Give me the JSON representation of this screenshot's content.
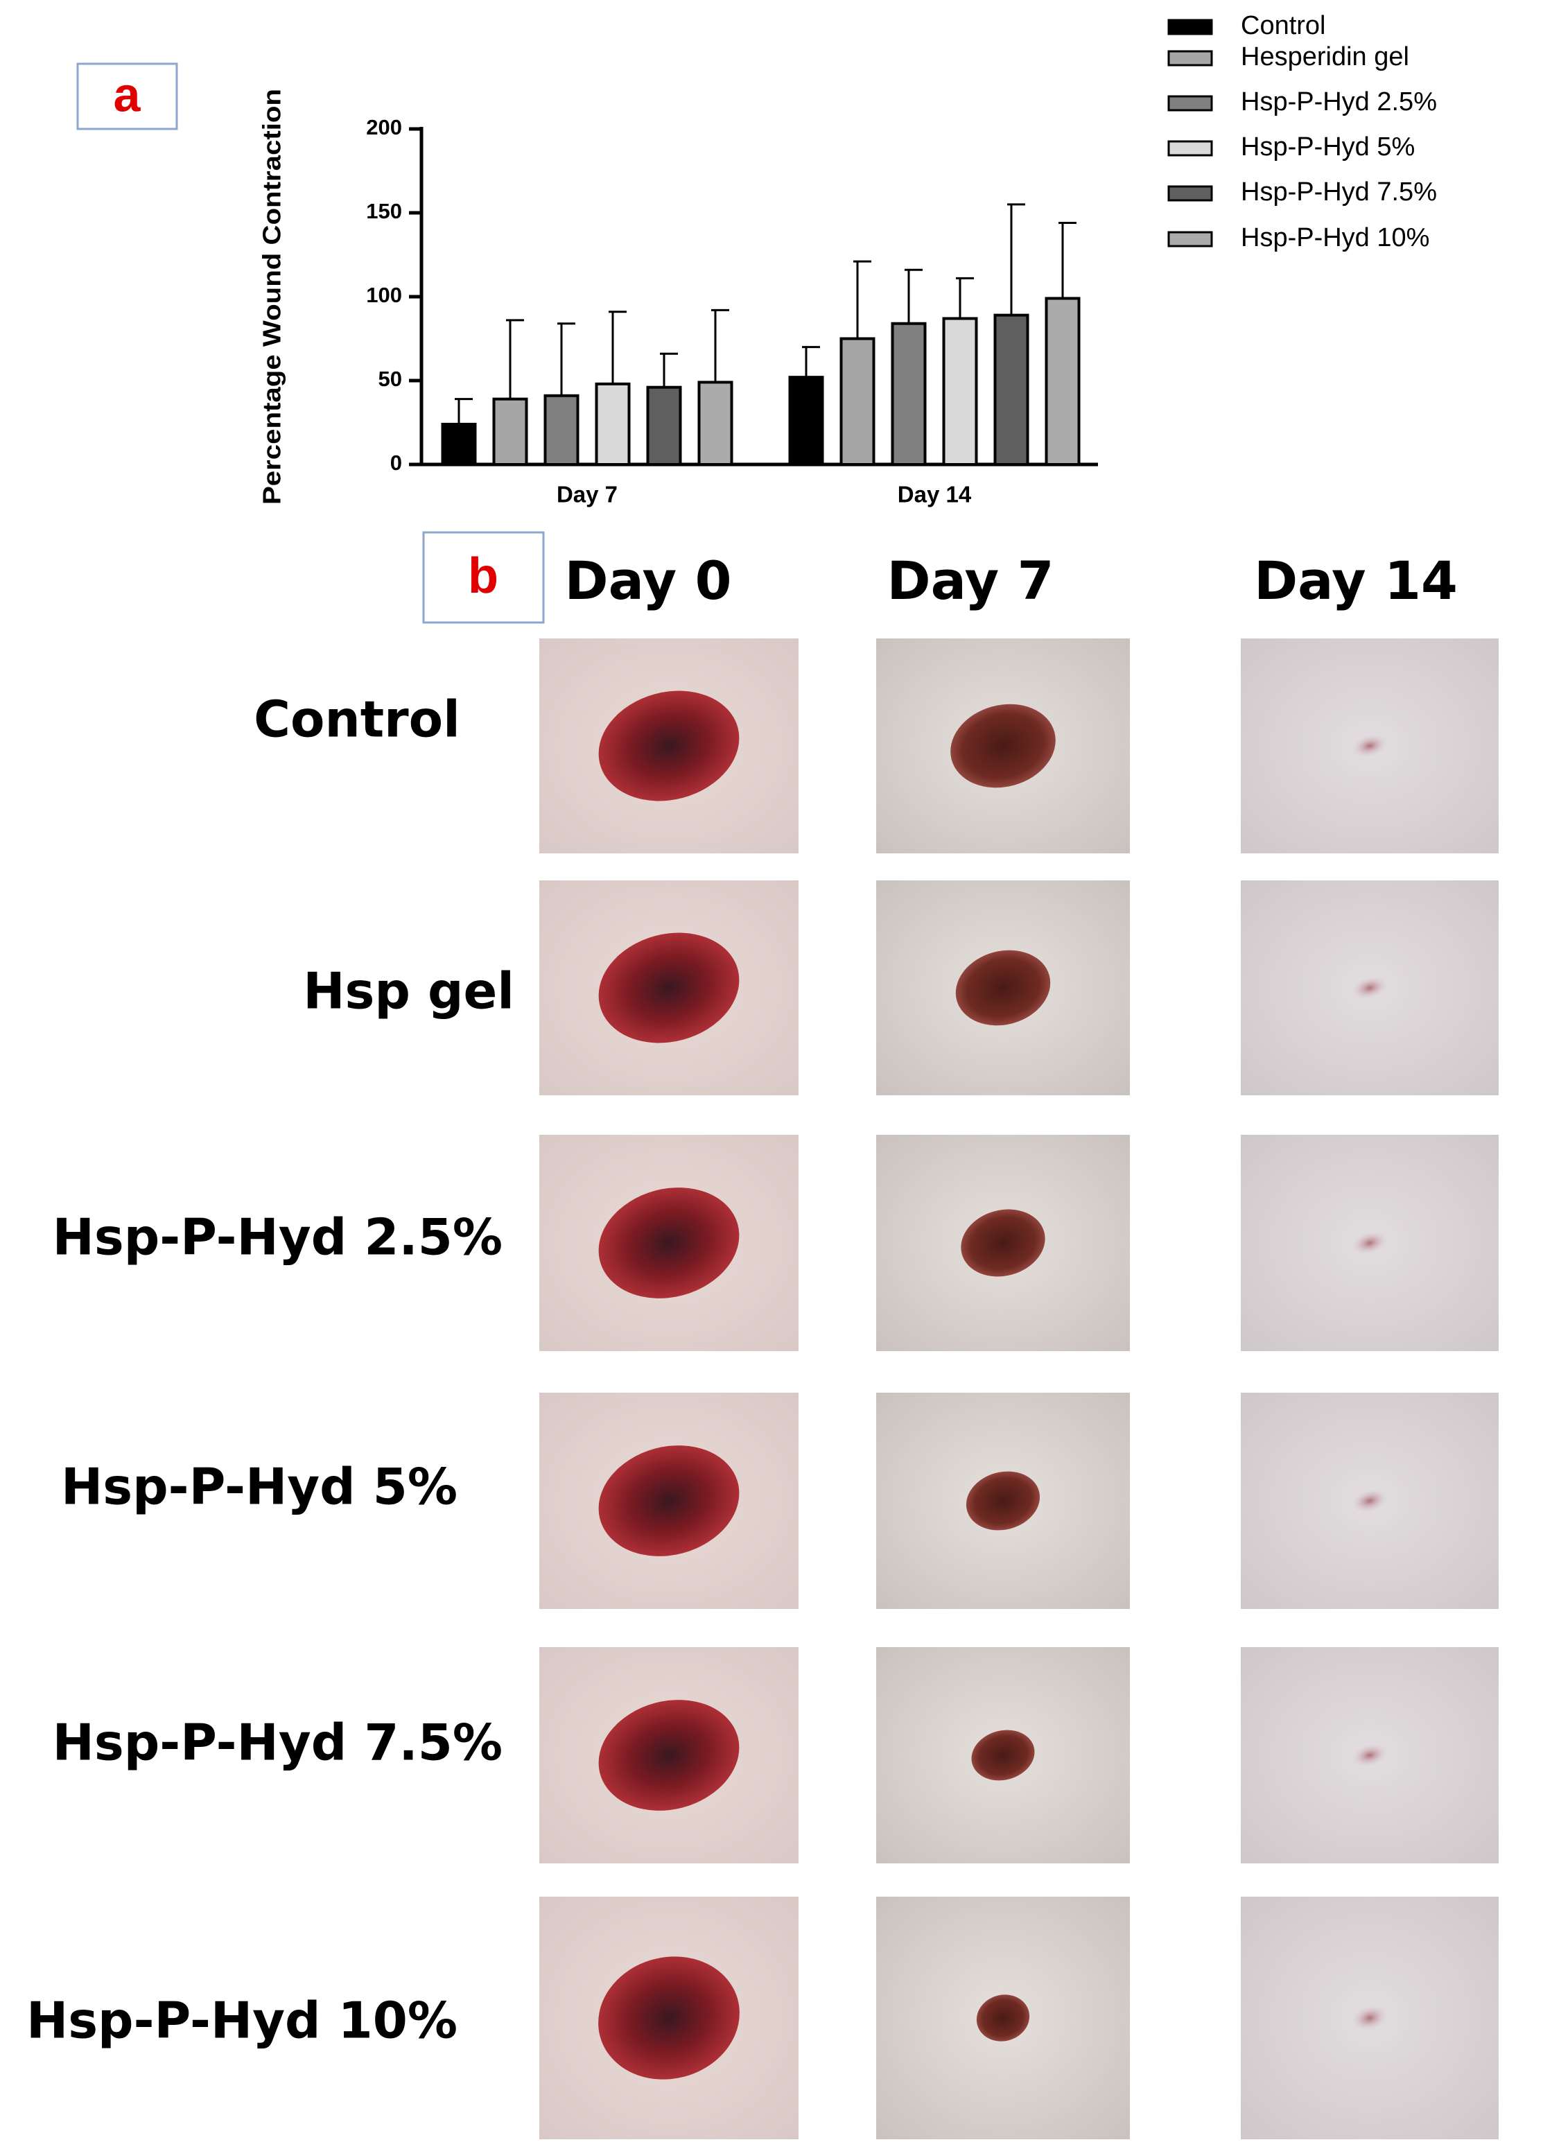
{
  "chart_data": {
    "type": "bar",
    "y_label": "Percentage Wound Contraction",
    "categories": [
      "Day 7",
      "Day 14"
    ],
    "series": [
      {
        "name": "Control",
        "color": "#000000",
        "values": [
          24,
          52
        ],
        "errors": [
          15,
          18
        ]
      },
      {
        "name": "Hesperidin gel",
        "color": "#a6a6a6",
        "values": [
          39,
          75
        ],
        "errors": [
          47,
          46
        ]
      },
      {
        "name": "Hsp-P-Hyd 2.5%",
        "color": "#808080",
        "values": [
          41,
          84
        ],
        "errors": [
          43,
          32
        ]
      },
      {
        "name": "Hsp-P-Hyd 5%",
        "color": "#d9d9d9",
        "values": [
          48,
          87
        ],
        "errors": [
          43,
          24
        ]
      },
      {
        "name": "Hsp-P-Hyd 7.5%",
        "color": "#5f5f5f",
        "values": [
          46,
          89
        ],
        "errors": [
          20,
          66
        ]
      },
      {
        "name": "Hsp-P-Hyd 10%",
        "color": "#ababab",
        "values": [
          49,
          99
        ],
        "errors": [
          43,
          45
        ]
      }
    ],
    "ylim": [
      0,
      200
    ],
    "yticks": [
      0,
      50,
      100,
      150,
      200
    ],
    "legend": "top-right",
    "grid": false
  },
  "panel_labels": [
    "a",
    "b"
  ],
  "photo_panel": {
    "columns": [
      "Day 0",
      "Day 7",
      "Day 14"
    ],
    "rows": [
      "Control",
      "Hsp gel",
      "Hsp-P-Hyd 2.5%",
      "Hsp-P-Hyd 5%",
      "Hsp-P-Hyd 7.5%",
      "Hsp-P-Hyd 10%"
    ]
  }
}
